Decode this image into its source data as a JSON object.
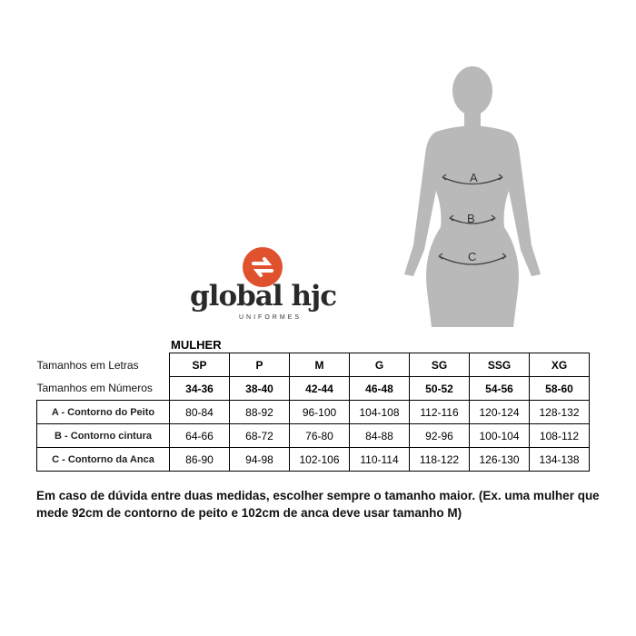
{
  "logo": {
    "name": "global hjc",
    "sub": "UNIFORMES",
    "color": "#e0522e"
  },
  "figure": {
    "labels": [
      "A",
      "B",
      "C"
    ]
  },
  "table": {
    "title": "MULHER",
    "rows": [
      {
        "label": "Tamanhos em Letras",
        "values": [
          "SP",
          "P",
          "M",
          "G",
          "SG",
          "SSG",
          "XG"
        ]
      },
      {
        "label": "Tamanhos em Números",
        "values": [
          "34-36",
          "38-40",
          "42-44",
          "46-48",
          "50-52",
          "54-56",
          "58-60"
        ]
      },
      {
        "label": "A - Contorno do Peito",
        "values": [
          "80-84",
          "88-92",
          "96-100",
          "104-108",
          "112-116",
          "120-124",
          "128-132"
        ]
      },
      {
        "label": "B - Contorno cintura",
        "values": [
          "64-66",
          "68-72",
          "76-80",
          "84-88",
          "92-96",
          "100-104",
          "108-112"
        ]
      },
      {
        "label": "C - Contorno da Anca",
        "values": [
          "86-90",
          "94-98",
          "102-106",
          "110-114",
          "118-122",
          "126-130",
          "134-138"
        ]
      }
    ]
  },
  "note": "Em caso de dúvida entre duas medidas, escolher sempre o tamanho maior. (Ex. uma mulher que mede 92cm de contorno de peito e 102cm de anca deve usar tamanho M)"
}
